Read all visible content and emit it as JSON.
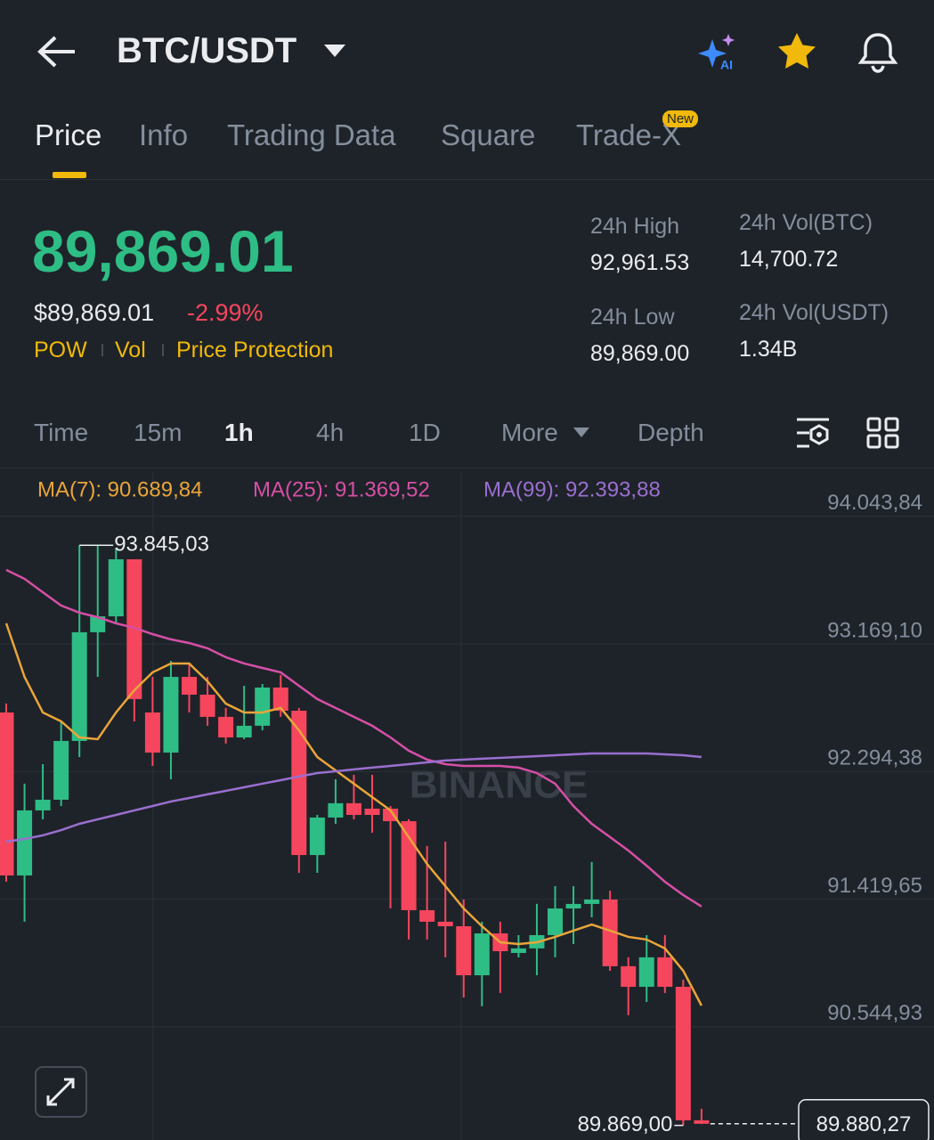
{
  "header": {
    "title": "BTC/USDT"
  },
  "tabs": [
    "Price",
    "Info",
    "Trading Data",
    "Square",
    "Trade-X"
  ],
  "tab_badge": "New",
  "price": {
    "last": "89,869.01",
    "usd": "$89,869.01",
    "change": "-2.99%",
    "tags": [
      "POW",
      "Vol",
      "Price Protection"
    ]
  },
  "stats": [
    {
      "label": "24h High",
      "value": "92,961.53"
    },
    {
      "label": "24h Low",
      "value": "89,869.00"
    },
    {
      "label": "24h Vol(BTC)",
      "value": "14,700.72"
    },
    {
      "label": "24h Vol(USDT)",
      "value": "1.34B"
    }
  ],
  "intervals": [
    "Time",
    "15m",
    "1h",
    "4h",
    "1D",
    "More",
    "Depth"
  ],
  "chart": {
    "type": "candlestick",
    "watermark": "BINANCE",
    "up_color": "#2ebd85",
    "down_color": "#f6465d",
    "ylim": [
      89769,
      94347
    ],
    "yticks": [
      {
        "value": 94043.84,
        "label": "94.043,84"
      },
      {
        "value": 93169.1,
        "label": "93.169,10"
      },
      {
        "value": 92294.38,
        "label": "92.294,38"
      },
      {
        "value": 91419.65,
        "label": "91.419,65"
      },
      {
        "value": 90544.93,
        "label": "90.544,93"
      }
    ],
    "grid": true,
    "high_marker": {
      "value": 93845.03,
      "label": "93.845,03"
    },
    "low_marker": {
      "value": 89869.0,
      "label": "89.869,00"
    },
    "last_price": {
      "value": 89880.27,
      "label": "89.880,27"
    },
    "candles": [
      {
        "open": 92699,
        "high": 92760,
        "low": 91539,
        "close": 91582
      },
      {
        "open": 91582,
        "high": 92211,
        "low": 91265,
        "close": 92028
      },
      {
        "open": 92028,
        "high": 92345,
        "low": 91967,
        "close": 92101
      },
      {
        "open": 92101,
        "high": 92638,
        "low": 92058,
        "close": 92504
      },
      {
        "open": 92504,
        "high": 93845.03,
        "low": 92394,
        "close": 93249
      },
      {
        "open": 93249,
        "high": 93840,
        "low": 92943,
        "close": 93358
      },
      {
        "open": 93358,
        "high": 93828,
        "low": 93310,
        "close": 93749
      },
      {
        "open": 93749,
        "high": 93749,
        "low": 92638,
        "close": 92791
      },
      {
        "open": 92699,
        "high": 92943,
        "low": 92333,
        "close": 92424
      },
      {
        "open": 92424,
        "high": 93053,
        "low": 92241,
        "close": 92943
      },
      {
        "open": 92943,
        "high": 93035,
        "low": 92699,
        "close": 92821
      },
      {
        "open": 92821,
        "high": 92943,
        "low": 92608,
        "close": 92669
      },
      {
        "open": 92669,
        "high": 92730,
        "low": 92486,
        "close": 92528
      },
      {
        "open": 92528,
        "high": 92882,
        "low": 92516,
        "close": 92608
      },
      {
        "open": 92608,
        "high": 92894,
        "low": 92577,
        "close": 92870
      },
      {
        "open": 92870,
        "high": 92956,
        "low": 92669,
        "close": 92711
      },
      {
        "open": 92711,
        "high": 92730,
        "low": 91600,
        "close": 91722
      },
      {
        "open": 91722,
        "high": 91997,
        "low": 91600,
        "close": 91979
      },
      {
        "open": 91979,
        "high": 92241,
        "low": 91936,
        "close": 92077
      },
      {
        "open": 92077,
        "high": 92272,
        "low": 91967,
        "close": 91997
      },
      {
        "open": 92040,
        "high": 92272,
        "low": 91875,
        "close": 91997
      },
      {
        "open": 92040,
        "high": 92058,
        "low": 91356,
        "close": 91954
      },
      {
        "open": 91954,
        "high": 91967,
        "low": 91143,
        "close": 91344
      },
      {
        "open": 91344,
        "high": 91784,
        "low": 91143,
        "close": 91265
      },
      {
        "open": 91265,
        "high": 91814,
        "low": 91021,
        "close": 91234
      },
      {
        "open": 91234,
        "high": 91417,
        "low": 90746,
        "close": 90898
      },
      {
        "open": 90898,
        "high": 91265,
        "low": 90685,
        "close": 91185
      },
      {
        "open": 91185,
        "high": 91265,
        "low": 90777,
        "close": 91063
      },
      {
        "open": 91051,
        "high": 91173,
        "low": 91021,
        "close": 91082
      },
      {
        "open": 91082,
        "high": 91387,
        "low": 90898,
        "close": 91173
      },
      {
        "open": 91173,
        "high": 91509,
        "low": 91021,
        "close": 91356
      },
      {
        "open": 91356,
        "high": 91509,
        "low": 91112,
        "close": 91387
      },
      {
        "open": 91387,
        "high": 91674,
        "low": 91295,
        "close": 91417
      },
      {
        "open": 91417,
        "high": 91478,
        "low": 90929,
        "close": 90960
      },
      {
        "open": 90960,
        "high": 91021,
        "low": 90624,
        "close": 90819
      },
      {
        "open": 90819,
        "high": 91173,
        "low": 90715,
        "close": 91021
      },
      {
        "open": 91021,
        "high": 91173,
        "low": 90776,
        "close": 90819
      },
      {
        "open": 90819,
        "high": 90868,
        "low": 89869.0,
        "close": 89904
      },
      {
        "open": 89904,
        "high": 89983,
        "low": 89879,
        "close": 89880.27
      }
    ],
    "series": [
      {
        "name": "MA(7): 90.689,84",
        "color": "#e9a53a",
        "values": [
          93310,
          92943,
          92699,
          92638,
          92528,
          92516,
          92699,
          92852,
          92974,
          93035,
          93035,
          92913,
          92760,
          92699,
          92699,
          92730,
          92577,
          92394,
          92302,
          92211,
          92119,
          92028,
          91845,
          91661,
          91509,
          91356,
          91234,
          91124,
          91112,
          91124,
          91161,
          91204,
          91246,
          91204,
          91161,
          91143,
          91082,
          90929,
          90689.84
        ]
      },
      {
        "name": "MA(25): 91.369,52",
        "color": "#d64fa6",
        "values": [
          93676,
          93615,
          93523,
          93432,
          93383,
          93352,
          93310,
          93279,
          93236,
          93200,
          93175,
          93139,
          93078,
          93035,
          93004,
          92974,
          92882,
          92791,
          92730,
          92669,
          92608,
          92528,
          92437,
          92376,
          92345,
          92333,
          92333,
          92333,
          92321,
          92284,
          92211,
          92058,
          91936,
          91845,
          91753,
          91649,
          91539,
          91448,
          91369.52
        ]
      },
      {
        "name": "MA(99): 92.393,88",
        "color": "#9a6fd0",
        "values": [
          91814,
          91832,
          91857,
          91893,
          91936,
          91967,
          91997,
          92028,
          92058,
          92089,
          92113,
          92138,
          92162,
          92186,
          92211,
          92235,
          92260,
          92284,
          92296,
          92309,
          92321,
          92333,
          92345,
          92357,
          92370,
          92376,
          92382,
          92388,
          92394,
          92400,
          92406,
          92412,
          92418,
          92418,
          92418,
          92418,
          92412,
          92406,
          92393.88
        ]
      }
    ]
  }
}
